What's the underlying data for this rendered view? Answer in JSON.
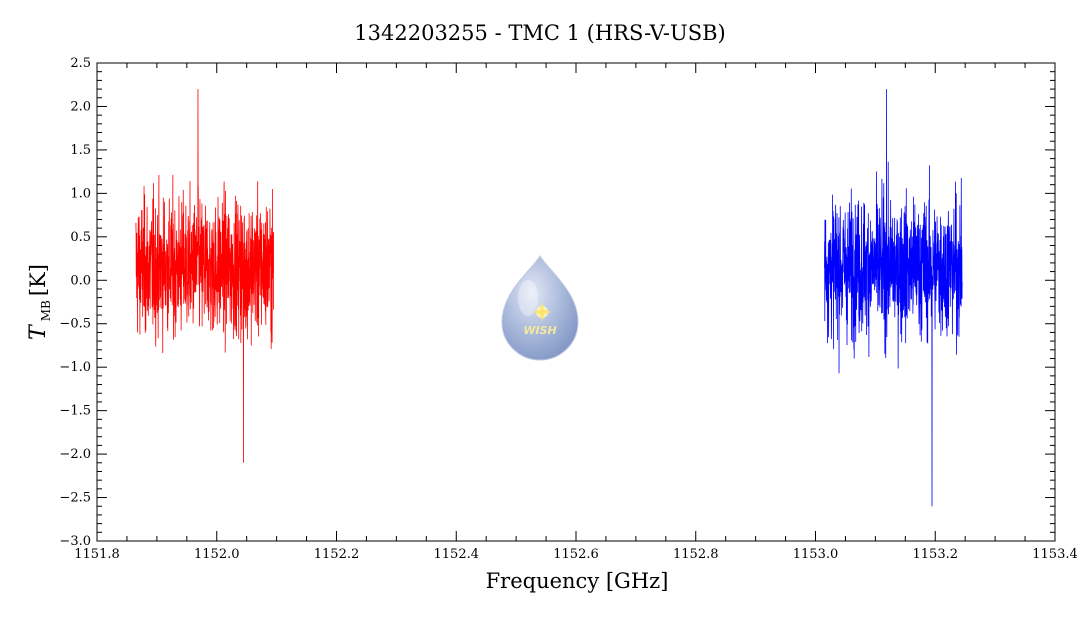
{
  "chart_data": {
    "type": "line",
    "title": "1342203255 - TMC 1 (HRS-V-USB)",
    "xlabel": "Frequency [GHz]",
    "ylabel_main": "T",
    "ylabel_sub": "MB",
    "ylabel_unit": "[K]",
    "xlim": [
      1151.8,
      1153.4
    ],
    "ylim": [
      -3.0,
      2.5
    ],
    "x_ticks": [
      1151.8,
      1152.0,
      1152.2,
      1152.4,
      1152.6,
      1152.8,
      1153.0,
      1153.2,
      1153.4
    ],
    "x_tick_labels": [
      "1151.8",
      "1152.0",
      "1152.2",
      "1152.4",
      "1152.6",
      "1152.8",
      "1153.0",
      "1153.2",
      "1153.4"
    ],
    "y_ticks": [
      -3.0,
      -2.5,
      -2.0,
      -1.5,
      -1.0,
      -0.5,
      0.0,
      0.5,
      1.0,
      1.5,
      2.0,
      2.5
    ],
    "y_tick_labels": [
      "−3.0",
      "−2.5",
      "−2.0",
      "−1.5",
      "−1.0",
      "−0.5",
      "0.0",
      "0.5",
      "1.0",
      "1.5",
      "2.0",
      "2.5"
    ],
    "grid": false,
    "series": [
      {
        "color": "#ff0000",
        "x_start": 1151.865,
        "x_end": 1152.095,
        "noise_sigma": 0.55,
        "y_max": 2.2,
        "y_min": -2.1
      },
      {
        "color": "#0000ff",
        "x_start": 1153.015,
        "x_end": 1153.245,
        "noise_sigma": 0.55,
        "y_max": 2.2,
        "y_min": -2.6
      }
    ],
    "logo_label": "WISH"
  }
}
